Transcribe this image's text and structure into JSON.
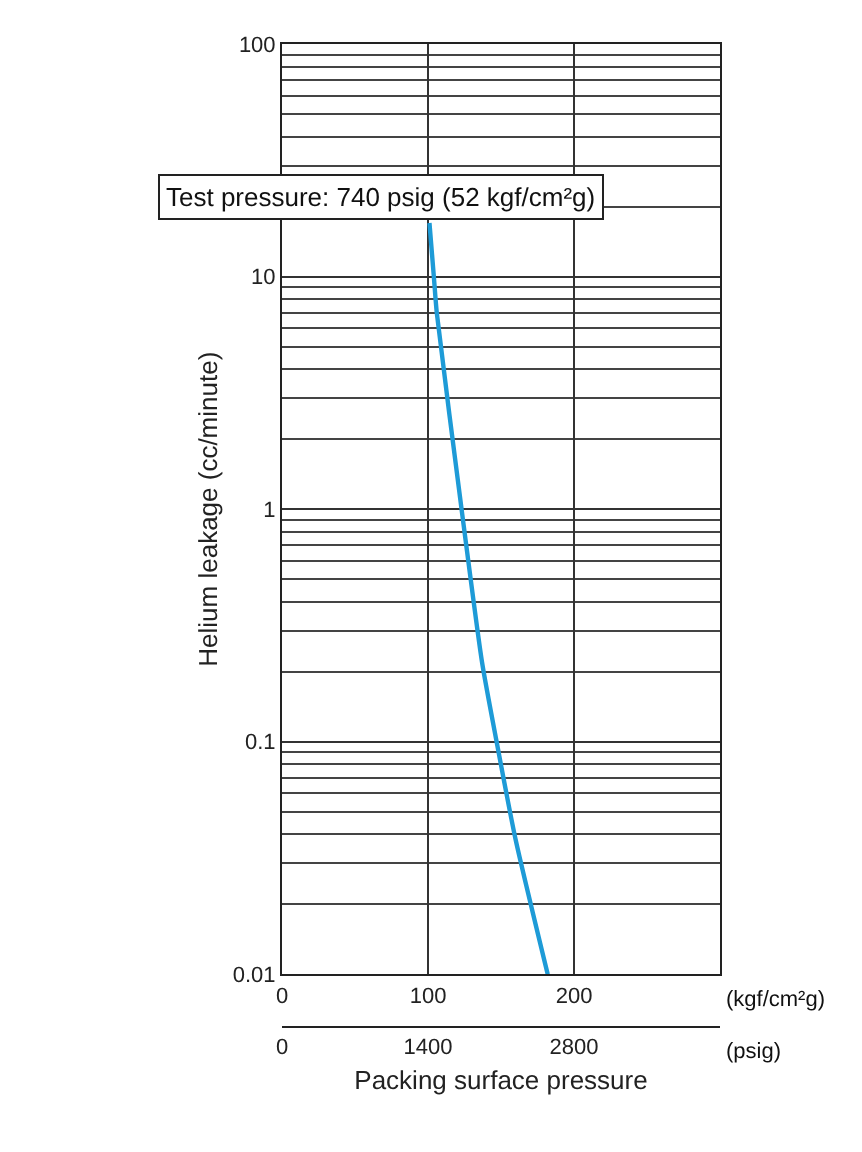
{
  "chart_data": {
    "type": "line",
    "xlabel": "Packing surface pressure",
    "ylabel": "Helium leakage (cc/minute)",
    "annotations": [
      "Test pressure: 740 psig (52 kgf/cm²g)",
      "(kgf/cm²g)",
      "(psig)"
    ],
    "x": [
      101,
      104,
      106,
      123,
      137,
      147,
      160,
      182
    ],
    "series": [
      {
        "color": "#1e9bd7",
        "values": [
          17,
          10,
          7,
          1,
          0.22,
          0.1,
          0.038,
          0.01
        ]
      }
    ],
    "log": "y",
    "xlim": [
      0,
      300
    ],
    "xticks": [
      0,
      100,
      200
    ],
    "x2lim": [
      0,
      4200
    ],
    "x2ticks": [
      0,
      1400,
      2800
    ],
    "ylim": [
      0.01,
      100
    ],
    "yticks": [
      0.01,
      0.1,
      1,
      10,
      100
    ],
    "grid": true,
    "marker": "none",
    "line_style": "solid"
  }
}
